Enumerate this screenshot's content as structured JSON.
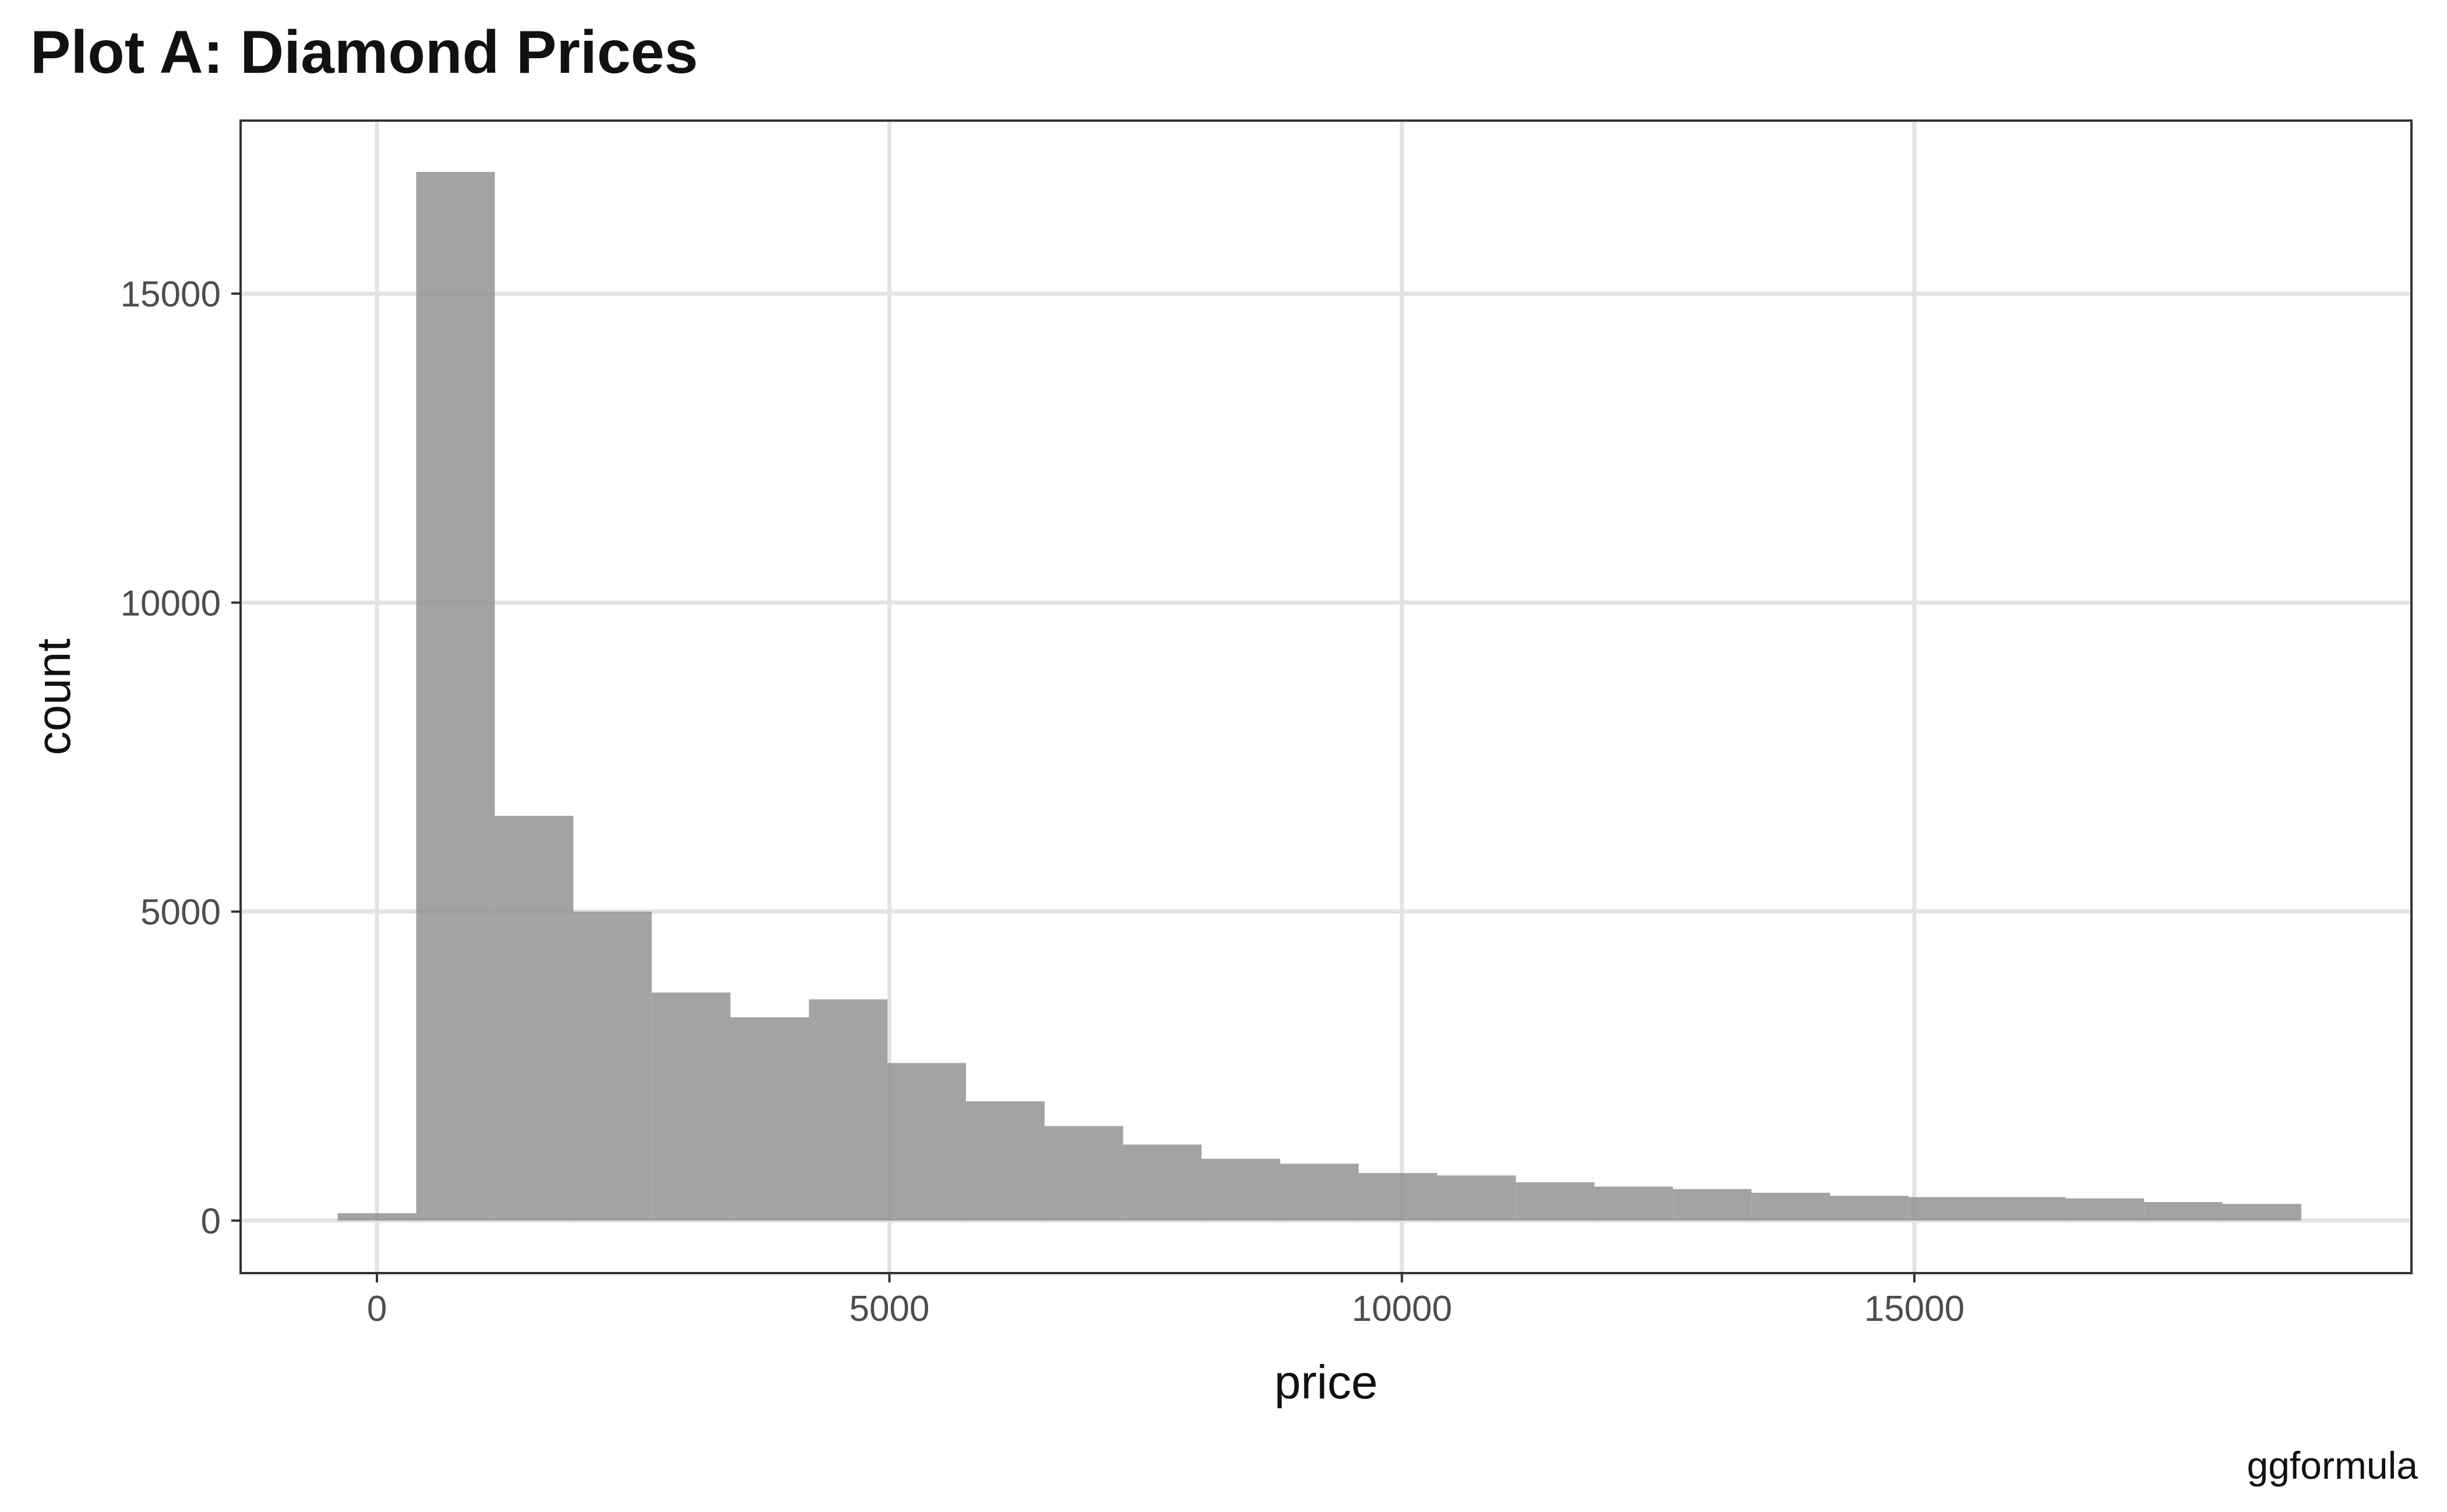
{
  "chart_data": {
    "type": "bar",
    "title": "Plot A: Diamond Prices",
    "xlabel": "price",
    "ylabel": "count",
    "caption": "ggformula",
    "xlim": [
      -1330,
      19850
    ],
    "ylim": [
      -850,
      17800
    ],
    "x_ticks": [
      0,
      5000,
      10000,
      15000
    ],
    "y_ticks": [
      0,
      5000,
      10000,
      15000
    ],
    "grid": true,
    "legend": "none",
    "bar_color": "#8c8c8c",
    "bins": [
      {
        "x_start": -383,
        "x_end": 383,
        "count": 120
      },
      {
        "x_start": 383,
        "x_end": 1150,
        "count": 16970
      },
      {
        "x_start": 1150,
        "x_end": 1916,
        "count": 6550
      },
      {
        "x_start": 1916,
        "x_end": 2682,
        "count": 5000
      },
      {
        "x_start": 2682,
        "x_end": 3449,
        "count": 3690
      },
      {
        "x_start": 3449,
        "x_end": 4215,
        "count": 3290
      },
      {
        "x_start": 4215,
        "x_end": 4981,
        "count": 3580
      },
      {
        "x_start": 4981,
        "x_end": 5747,
        "count": 2550
      },
      {
        "x_start": 5747,
        "x_end": 6514,
        "count": 1930
      },
      {
        "x_start": 6514,
        "x_end": 7280,
        "count": 1530
      },
      {
        "x_start": 7280,
        "x_end": 8046,
        "count": 1230
      },
      {
        "x_start": 8046,
        "x_end": 8813,
        "count": 1000
      },
      {
        "x_start": 8813,
        "x_end": 9579,
        "count": 920
      },
      {
        "x_start": 9579,
        "x_end": 10345,
        "count": 770
      },
      {
        "x_start": 10345,
        "x_end": 11112,
        "count": 730
      },
      {
        "x_start": 11112,
        "x_end": 11878,
        "count": 620
      },
      {
        "x_start": 11878,
        "x_end": 12644,
        "count": 550
      },
      {
        "x_start": 12644,
        "x_end": 13411,
        "count": 510
      },
      {
        "x_start": 13411,
        "x_end": 14177,
        "count": 450
      },
      {
        "x_start": 14177,
        "x_end": 14943,
        "count": 400
      },
      {
        "x_start": 14943,
        "x_end": 15709,
        "count": 380
      },
      {
        "x_start": 15709,
        "x_end": 16476,
        "count": 380
      },
      {
        "x_start": 16476,
        "x_end": 17242,
        "count": 360
      },
      {
        "x_start": 17242,
        "x_end": 18008,
        "count": 300
      },
      {
        "x_start": 18008,
        "x_end": 18775,
        "count": 270
      }
    ]
  }
}
